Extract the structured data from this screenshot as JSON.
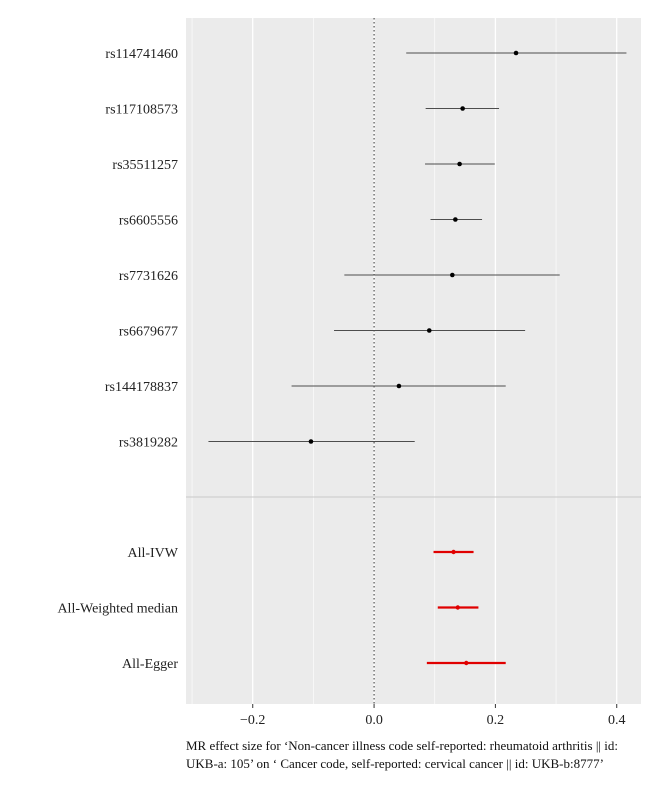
{
  "chart_data": {
    "type": "forest",
    "xlabel": "MR effect size for ‘Non-cancer illness code self-reported: rheumatoid arthritis || id: UKB-a: 105’ on ‘ Cancer code, self-reported: cervical cancer || id: UKB-b:8777’",
    "xlim": [
      -0.31,
      0.44
    ],
    "xticks": [
      -0.2,
      0.0,
      0.2,
      0.4
    ],
    "xtick_labels": [
      "−0.2",
      "0.0",
      "0.2",
      "0.4"
    ],
    "reference_line": 0,
    "grid": true,
    "snps": [
      {
        "label": "rs114741460",
        "estimate": 0.234,
        "lower": 0.053,
        "upper": 0.416
      },
      {
        "label": "rs117108573",
        "estimate": 0.146,
        "lower": 0.085,
        "upper": 0.206
      },
      {
        "label": "rs35511257",
        "estimate": 0.141,
        "lower": 0.084,
        "upper": 0.199
      },
      {
        "label": "rs6605556",
        "estimate": 0.134,
        "lower": 0.093,
        "upper": 0.178
      },
      {
        "label": "rs7731626",
        "estimate": 0.129,
        "lower": -0.049,
        "upper": 0.306
      },
      {
        "label": "rs6679677",
        "estimate": 0.091,
        "lower": -0.066,
        "upper": 0.249
      },
      {
        "label": "rs144178837",
        "estimate": 0.041,
        "lower": -0.136,
        "upper": 0.217
      },
      {
        "label": "rs3819282",
        "estimate": -0.104,
        "lower": -0.273,
        "upper": 0.067
      }
    ],
    "summary": [
      {
        "label": "All-IVW",
        "estimate": 0.131,
        "lower": 0.098,
        "upper": 0.164
      },
      {
        "label": "All-Weighted median",
        "estimate": 0.138,
        "lower": 0.105,
        "upper": 0.172
      },
      {
        "label": "All-Egger",
        "estimate": 0.152,
        "lower": 0.087,
        "upper": 0.217
      }
    ],
    "colors": {
      "panel": "#ebebeb",
      "grid": "#ffffff",
      "snp": "#000000",
      "snp_bar": "#4d4d4d",
      "summary": "#e00000",
      "separator": "#c8c8c8"
    }
  }
}
